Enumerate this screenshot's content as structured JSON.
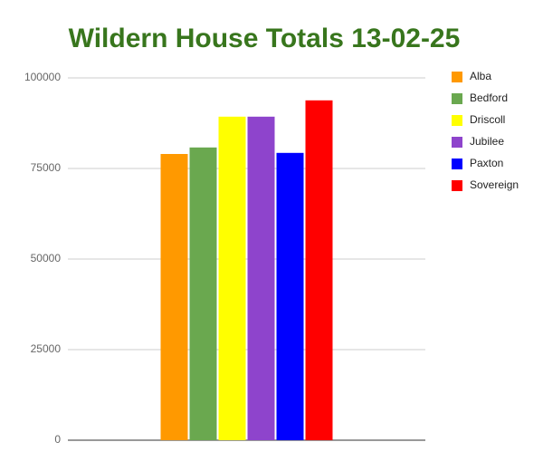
{
  "chart_data": {
    "type": "bar",
    "title": "Wildern House Totals 13-02-25",
    "categories": [
      null
    ],
    "series": [
      {
        "name": "Alba",
        "color": "#ff9900",
        "values": [
          79000
        ]
      },
      {
        "name": "Bedford",
        "color": "#6aa84f",
        "values": [
          80800
        ]
      },
      {
        "name": "Driscoll",
        "color": "#ffff00",
        "values": [
          89300
        ]
      },
      {
        "name": "Jubilee",
        "color": "#8e44cc",
        "values": [
          89300
        ]
      },
      {
        "name": "Paxton",
        "color": "#0000ff",
        "values": [
          79300
        ]
      },
      {
        "name": "Sovereign",
        "color": "#ff0000",
        "values": [
          93800
        ]
      }
    ],
    "ylim": [
      0,
      100000
    ],
    "yticks": [
      0,
      25000,
      50000,
      75000,
      100000
    ],
    "grid": true,
    "legend": "right"
  }
}
